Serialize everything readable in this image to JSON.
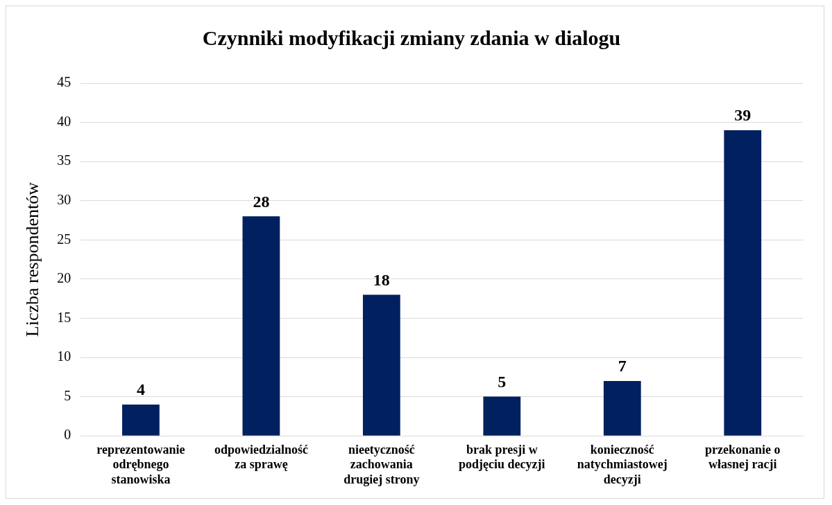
{
  "chart_data": {
    "type": "bar",
    "title": "Czynniki modyfikacji zmiany zdania w dialogu",
    "ylabel": "Liczba respondentów",
    "categories": [
      "reprezentowanie odrębnego stanowiska",
      "odpowiedzialność za sprawę",
      "nieetyczność zachowania drugiej strony",
      "brak presji w podjęciu decyzji",
      "konieczność natychmiastowej decyzji",
      "przekonanie o własnej racji"
    ],
    "values": [
      4,
      28,
      18,
      5,
      7,
      39
    ],
    "color": "#002060",
    "ylim": [
      0,
      45
    ],
    "yticks": [
      0,
      5,
      10,
      15,
      20,
      25,
      30,
      35,
      40,
      45
    ],
    "grid": "y",
    "data_labels": true,
    "legend": false
  }
}
